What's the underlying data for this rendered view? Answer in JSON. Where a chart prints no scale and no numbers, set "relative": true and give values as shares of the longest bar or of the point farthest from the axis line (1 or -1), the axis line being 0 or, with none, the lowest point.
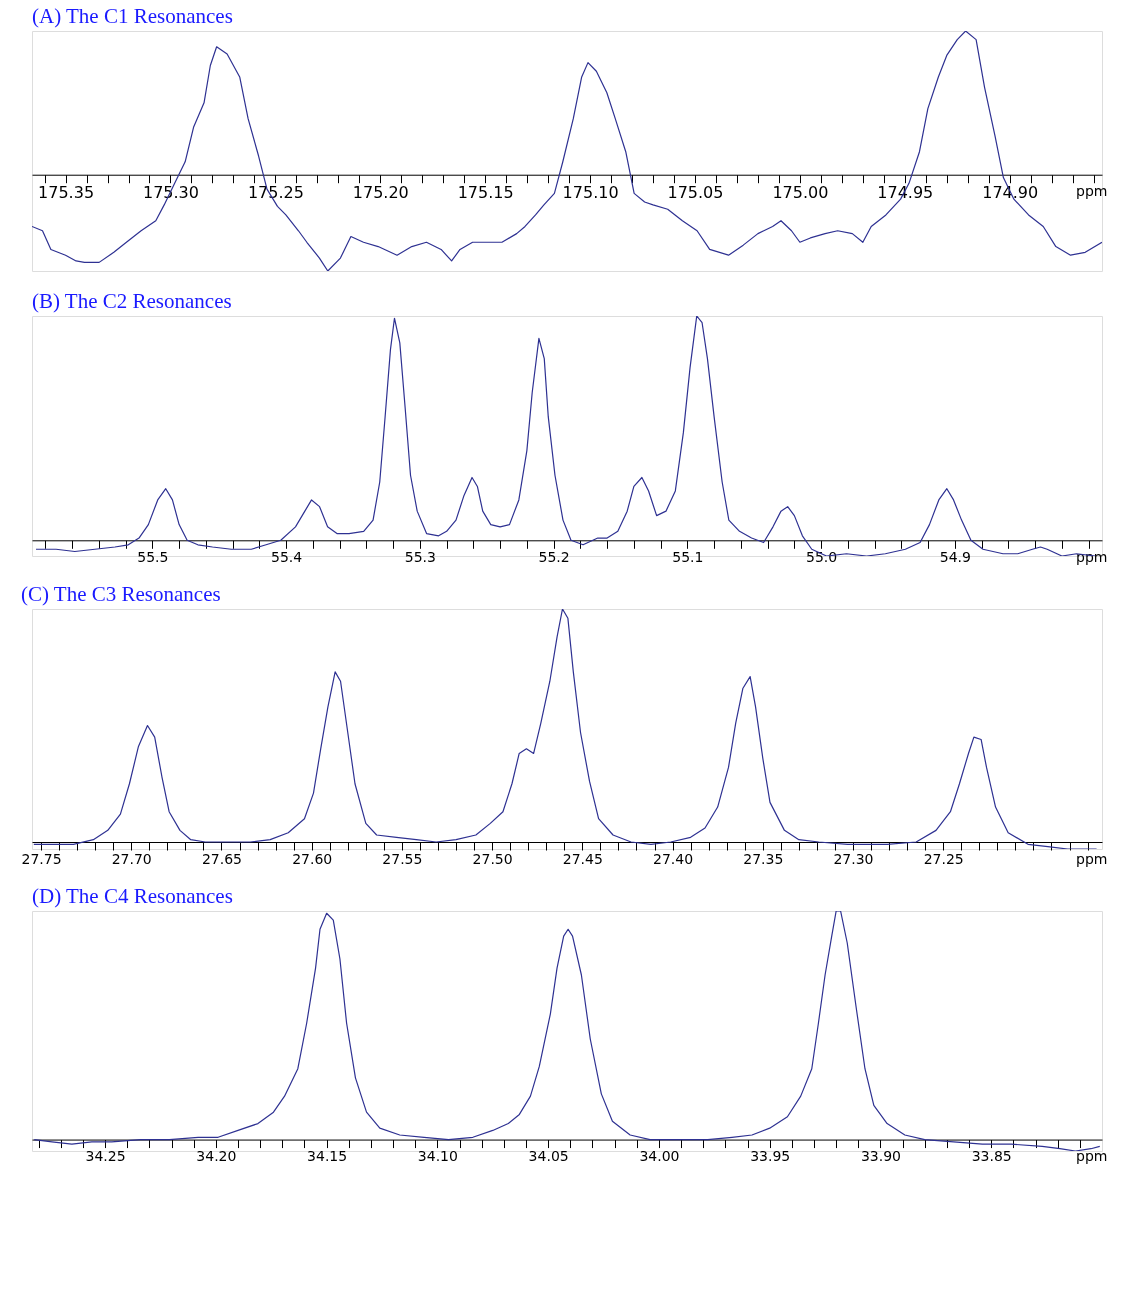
{
  "chart_data": [
    {
      "type": "line",
      "title": "(A) The C1 Resonances",
      "xlabel": "ppm",
      "relative": true,
      "grid": false,
      "xlim": [
        175.366,
        174.856
      ],
      "xticks": [
        {
          "value": 175.36,
          "label": null
        },
        {
          "value": 175.35,
          "label": "175.35"
        },
        {
          "value": 175.34,
          "label": null
        },
        {
          "value": 175.33,
          "label": null
        },
        {
          "value": 175.32,
          "label": null
        },
        {
          "value": 175.31,
          "label": null
        },
        {
          "value": 175.3,
          "label": "175.30"
        },
        {
          "value": 175.29,
          "label": null
        },
        {
          "value": 175.28,
          "label": null
        },
        {
          "value": 175.27,
          "label": null
        },
        {
          "value": 175.26,
          "label": null
        },
        {
          "value": 175.25,
          "label": "175.25"
        },
        {
          "value": 175.24,
          "label": null
        },
        {
          "value": 175.23,
          "label": null
        },
        {
          "value": 175.22,
          "label": null
        },
        {
          "value": 175.21,
          "label": null
        },
        {
          "value": 175.2,
          "label": "175.20"
        },
        {
          "value": 175.19,
          "label": null
        },
        {
          "value": 175.18,
          "label": null
        },
        {
          "value": 175.17,
          "label": null
        },
        {
          "value": 175.16,
          "label": null
        },
        {
          "value": 175.15,
          "label": "175.15"
        },
        {
          "value": 175.14,
          "label": null
        },
        {
          "value": 175.13,
          "label": null
        },
        {
          "value": 175.12,
          "label": null
        },
        {
          "value": 175.11,
          "label": null
        },
        {
          "value": 175.1,
          "label": "175.10"
        },
        {
          "value": 175.09,
          "label": null
        },
        {
          "value": 175.08,
          "label": null
        },
        {
          "value": 175.07,
          "label": null
        },
        {
          "value": 175.06,
          "label": null
        },
        {
          "value": 175.05,
          "label": "175.05"
        },
        {
          "value": 175.04,
          "label": null
        },
        {
          "value": 175.03,
          "label": null
        },
        {
          "value": 175.02,
          "label": null
        },
        {
          "value": 175.01,
          "label": null
        },
        {
          "value": 175.0,
          "label": "175.00"
        },
        {
          "value": 174.99,
          "label": null
        },
        {
          "value": 174.98,
          "label": null
        },
        {
          "value": 174.97,
          "label": null
        },
        {
          "value": 174.96,
          "label": null
        },
        {
          "value": 174.95,
          "label": "174.95"
        },
        {
          "value": 174.94,
          "label": null
        },
        {
          "value": 174.93,
          "label": null
        },
        {
          "value": 174.92,
          "label": null
        },
        {
          "value": 174.91,
          "label": null
        },
        {
          "value": 174.9,
          "label": "174.90"
        },
        {
          "value": 174.89,
          "label": null
        },
        {
          "value": 174.88,
          "label": null
        },
        {
          "value": 174.87,
          "label": null
        },
        {
          "value": 174.86,
          "label": null
        }
      ],
      "series": [
        {
          "color": "#2e3192",
          "line_style": "solid",
          "x": [
            175.366,
            175.361,
            175.357,
            175.35,
            175.345,
            175.341,
            175.334,
            175.327,
            175.321,
            175.314,
            175.307,
            175.303,
            175.298,
            175.293,
            175.289,
            175.284,
            175.281,
            175.278,
            175.273,
            175.267,
            175.263,
            175.258,
            175.254,
            175.249,
            175.245,
            175.239,
            175.235,
            175.229,
            175.225,
            175.219,
            175.214,
            175.208,
            175.201,
            175.192,
            175.185,
            175.178,
            175.171,
            175.166,
            175.162,
            175.156,
            175.149,
            175.142,
            175.135,
            175.131,
            175.126,
            175.122,
            175.117,
            175.113,
            175.108,
            175.104,
            175.101,
            175.097,
            175.092,
            175.088,
            175.083,
            175.079,
            175.074,
            175.07,
            175.063,
            175.056,
            175.049,
            175.043,
            175.034,
            175.027,
            175.02,
            175.013,
            175.009,
            175.004,
            175.0,
            174.995,
            174.988,
            174.982,
            174.975,
            174.97,
            174.966,
            174.959,
            174.952,
            174.948,
            174.943,
            174.939,
            174.934,
            174.93,
            174.925,
            174.921,
            174.916,
            174.912,
            174.907,
            174.903,
            174.898,
            174.891,
            174.884,
            174.878,
            174.871,
            174.864,
            174.856
          ],
          "values": [
            -0.36,
            -0.39,
            -0.52,
            -0.56,
            -0.6,
            -0.61,
            -0.61,
            -0.54,
            -0.47,
            -0.39,
            -0.32,
            -0.21,
            -0.06,
            0.09,
            0.33,
            0.5,
            0.76,
            0.89,
            0.84,
            0.68,
            0.39,
            0.13,
            -0.1,
            -0.22,
            -0.28,
            -0.39,
            -0.47,
            -0.58,
            -0.67,
            -0.58,
            -0.43,
            -0.47,
            -0.5,
            -0.56,
            -0.5,
            -0.47,
            -0.52,
            -0.6,
            -0.52,
            -0.47,
            -0.47,
            -0.47,
            -0.41,
            -0.36,
            -0.28,
            -0.21,
            -0.13,
            0.09,
            0.39,
            0.68,
            0.78,
            0.72,
            0.57,
            0.39,
            0.16,
            -0.13,
            -0.19,
            -0.21,
            -0.24,
            -0.32,
            -0.39,
            -0.52,
            -0.56,
            -0.49,
            -0.41,
            -0.36,
            -0.32,
            -0.39,
            -0.47,
            -0.44,
            -0.41,
            -0.39,
            -0.41,
            -0.47,
            -0.36,
            -0.28,
            -0.17,
            -0.06,
            0.16,
            0.46,
            0.68,
            0.83,
            0.94,
            1,
            0.94,
            0.61,
            0.27,
            -0.02,
            -0.17,
            -0.28,
            -0.36,
            -0.5,
            -0.56,
            -0.54,
            -0.47
          ]
        }
      ]
    },
    {
      "type": "line",
      "title": "(B) The C2 Resonances",
      "xlabel": "ppm",
      "relative": true,
      "grid": false,
      "xlim": [
        55.59,
        54.79
      ],
      "xticks": [
        {
          "value": 55.58,
          "label": null
        },
        {
          "value": 55.56,
          "label": null
        },
        {
          "value": 55.54,
          "label": null
        },
        {
          "value": 55.52,
          "label": null
        },
        {
          "value": 55.5,
          "label": "55.5"
        },
        {
          "value": 55.48,
          "label": null
        },
        {
          "value": 55.46,
          "label": null
        },
        {
          "value": 55.44,
          "label": null
        },
        {
          "value": 55.42,
          "label": null
        },
        {
          "value": 55.4,
          "label": "55.4"
        },
        {
          "value": 55.38,
          "label": null
        },
        {
          "value": 55.36,
          "label": null
        },
        {
          "value": 55.34,
          "label": null
        },
        {
          "value": 55.32,
          "label": null
        },
        {
          "value": 55.3,
          "label": "55.3"
        },
        {
          "value": 55.28,
          "label": null
        },
        {
          "value": 55.26,
          "label": null
        },
        {
          "value": 55.24,
          "label": null
        },
        {
          "value": 55.22,
          "label": null
        },
        {
          "value": 55.2,
          "label": "55.2"
        },
        {
          "value": 55.18,
          "label": null
        },
        {
          "value": 55.16,
          "label": null
        },
        {
          "value": 55.14,
          "label": null
        },
        {
          "value": 55.12,
          "label": null
        },
        {
          "value": 55.1,
          "label": "55.1"
        },
        {
          "value": 55.08,
          "label": null
        },
        {
          "value": 55.06,
          "label": null
        },
        {
          "value": 55.04,
          "label": null
        },
        {
          "value": 55.02,
          "label": null
        },
        {
          "value": 55.0,
          "label": "55.0"
        },
        {
          "value": 54.98,
          "label": null
        },
        {
          "value": 54.96,
          "label": null
        },
        {
          "value": 54.94,
          "label": null
        },
        {
          "value": 54.92,
          "label": null
        },
        {
          "value": 54.9,
          "label": "54.9"
        },
        {
          "value": 54.88,
          "label": null
        },
        {
          "value": 54.86,
          "label": null
        },
        {
          "value": 54.84,
          "label": null
        },
        {
          "value": 54.82,
          "label": null
        },
        {
          "value": 54.8,
          "label": null
        }
      ],
      "series": [
        {
          "color": "#2e3192",
          "line_style": "solid",
          "x": [
            55.587,
            55.572,
            55.558,
            55.543,
            55.528,
            55.518,
            55.51,
            55.503,
            55.496,
            55.49,
            55.485,
            55.48,
            55.474,
            55.466,
            55.455,
            55.441,
            55.426,
            55.415,
            55.404,
            55.393,
            55.386,
            55.381,
            55.375,
            55.369,
            55.362,
            55.353,
            55.342,
            55.335,
            55.33,
            55.326,
            55.322,
            55.319,
            55.315,
            55.311,
            55.307,
            55.302,
            55.295,
            55.286,
            55.28,
            55.273,
            55.267,
            55.261,
            55.257,
            55.253,
            55.247,
            55.24,
            55.233,
            55.226,
            55.22,
            55.216,
            55.211,
            55.207,
            55.204,
            55.199,
            55.193,
            55.187,
            55.178,
            55.167,
            55.16,
            55.152,
            55.145,
            55.14,
            55.134,
            55.129,
            55.123,
            55.116,
            55.109,
            55.103,
            55.098,
            55.093,
            55.089,
            55.085,
            55.08,
            55.074,
            55.069,
            55.061,
            55.052,
            55.043,
            55.036,
            55.03,
            55.025,
            55.02,
            55.014,
            55.007,
            54.996,
            54.981,
            54.966,
            54.952,
            54.937,
            54.926,
            54.919,
            54.912,
            54.906,
            54.901,
            54.895,
            54.888,
            54.879,
            54.864,
            54.853,
            54.842,
            54.836,
            54.831,
            54.82,
            54.809,
            54.795
          ],
          "values": [
            -0.04,
            -0.04,
            -0.05,
            -0.04,
            -0.03,
            -0.02,
            0.01,
            0.07,
            0.18,
            0.23,
            0.18,
            0.07,
            0,
            -0.02,
            -0.03,
            -0.04,
            -0.04,
            -0.02,
            0,
            0.06,
            0.13,
            0.18,
            0.15,
            0.06,
            0.03,
            0.03,
            0.04,
            0.09,
            0.26,
            0.55,
            0.85,
            0.99,
            0.88,
            0.59,
            0.29,
            0.13,
            0.03,
            0.02,
            0.04,
            0.09,
            0.2,
            0.28,
            0.24,
            0.13,
            0.07,
            0.06,
            0.07,
            0.18,
            0.4,
            0.66,
            0.9,
            0.81,
            0.55,
            0.29,
            0.09,
            0,
            -0.02,
            0.01,
            0.01,
            0.04,
            0.13,
            0.24,
            0.28,
            0.22,
            0.11,
            0.13,
            0.22,
            0.48,
            0.77,
            1,
            0.97,
            0.81,
            0.55,
            0.26,
            0.09,
            0.04,
            0.01,
            -0.01,
            0.06,
            0.13,
            0.15,
            0.11,
            0.02,
            -0.04,
            -0.07,
            -0.06,
            -0.07,
            -0.06,
            -0.04,
            -0.01,
            0.07,
            0.18,
            0.23,
            0.18,
            0.09,
            0,
            -0.04,
            -0.06,
            -0.06,
            -0.04,
            -0.03,
            -0.04,
            -0.07,
            -0.06,
            -0.07
          ]
        }
      ]
    },
    {
      "type": "line",
      "title": "(C) The C3 Resonances",
      "xlabel": "ppm",
      "relative": true,
      "grid": false,
      "xlim": [
        27.755,
        27.162
      ],
      "xticks": [
        {
          "value": 27.75,
          "label": "27.75"
        },
        {
          "value": 27.74,
          "label": null
        },
        {
          "value": 27.73,
          "label": null
        },
        {
          "value": 27.72,
          "label": null
        },
        {
          "value": 27.71,
          "label": null
        },
        {
          "value": 27.7,
          "label": "27.70"
        },
        {
          "value": 27.69,
          "label": null
        },
        {
          "value": 27.68,
          "label": null
        },
        {
          "value": 27.67,
          "label": null
        },
        {
          "value": 27.66,
          "label": null
        },
        {
          "value": 27.65,
          "label": "27.65"
        },
        {
          "value": 27.64,
          "label": null
        },
        {
          "value": 27.63,
          "label": null
        },
        {
          "value": 27.62,
          "label": null
        },
        {
          "value": 27.61,
          "label": null
        },
        {
          "value": 27.6,
          "label": "27.60"
        },
        {
          "value": 27.59,
          "label": null
        },
        {
          "value": 27.58,
          "label": null
        },
        {
          "value": 27.57,
          "label": null
        },
        {
          "value": 27.56,
          "label": null
        },
        {
          "value": 27.55,
          "label": "27.55"
        },
        {
          "value": 27.54,
          "label": null
        },
        {
          "value": 27.53,
          "label": null
        },
        {
          "value": 27.52,
          "label": null
        },
        {
          "value": 27.51,
          "label": null
        },
        {
          "value": 27.5,
          "label": "27.50"
        },
        {
          "value": 27.49,
          "label": null
        },
        {
          "value": 27.48,
          "label": null
        },
        {
          "value": 27.47,
          "label": null
        },
        {
          "value": 27.46,
          "label": null
        },
        {
          "value": 27.45,
          "label": "27.45"
        },
        {
          "value": 27.44,
          "label": null
        },
        {
          "value": 27.43,
          "label": null
        },
        {
          "value": 27.42,
          "label": null
        },
        {
          "value": 27.41,
          "label": null
        },
        {
          "value": 27.4,
          "label": "27.40"
        },
        {
          "value": 27.39,
          "label": null
        },
        {
          "value": 27.38,
          "label": null
        },
        {
          "value": 27.37,
          "label": null
        },
        {
          "value": 27.36,
          "label": null
        },
        {
          "value": 27.35,
          "label": "27.35"
        },
        {
          "value": 27.34,
          "label": null
        },
        {
          "value": 27.33,
          "label": null
        },
        {
          "value": 27.32,
          "label": null
        },
        {
          "value": 27.31,
          "label": null
        },
        {
          "value": 27.3,
          "label": "27.30"
        },
        {
          "value": 27.29,
          "label": null
        },
        {
          "value": 27.28,
          "label": null
        },
        {
          "value": 27.27,
          "label": null
        },
        {
          "value": 27.26,
          "label": null
        },
        {
          "value": 27.25,
          "label": "27.25"
        },
        {
          "value": 27.24,
          "label": null
        },
        {
          "value": 27.23,
          "label": null
        },
        {
          "value": 27.22,
          "label": null
        },
        {
          "value": 27.21,
          "label": null
        },
        {
          "value": 27.2,
          "label": null
        },
        {
          "value": 27.19,
          "label": null
        },
        {
          "value": 27.18,
          "label": null
        },
        {
          "value": 27.17,
          "label": null
        }
      ],
      "series": [
        {
          "color": "#2e3192",
          "line_style": "solid",
          "x": [
            27.754,
            27.743,
            27.732,
            27.721,
            27.713,
            27.706,
            27.701,
            27.696,
            27.691,
            27.687,
            27.683,
            27.679,
            27.673,
            27.667,
            27.659,
            27.648,
            27.634,
            27.623,
            27.613,
            27.604,
            27.599,
            27.595,
            27.591,
            27.587,
            27.584,
            27.58,
            27.576,
            27.57,
            27.564,
            27.553,
            27.542,
            27.531,
            27.52,
            27.509,
            27.501,
            27.494,
            27.489,
            27.485,
            27.481,
            27.477,
            27.473,
            27.468,
            27.464,
            27.461,
            27.458,
            27.455,
            27.451,
            27.446,
            27.441,
            27.433,
            27.423,
            27.412,
            27.401,
            27.39,
            27.382,
            27.375,
            27.369,
            27.365,
            27.361,
            27.357,
            27.354,
            27.35,
            27.346,
            27.338,
            27.33,
            27.319,
            27.303,
            27.281,
            27.265,
            27.254,
            27.246,
            27.241,
            27.236,
            27.233,
            27.229,
            27.226,
            27.221,
            27.214,
            27.203,
            27.192,
            27.181,
            27.173,
            27.165
          ],
          "values": [
            -0.01,
            -0.01,
            -0.01,
            0.01,
            0.05,
            0.12,
            0.25,
            0.41,
            0.5,
            0.45,
            0.28,
            0.13,
            0.05,
            0.01,
            0,
            0,
            0,
            0.01,
            0.04,
            0.1,
            0.21,
            0.4,
            0.58,
            0.73,
            0.69,
            0.47,
            0.25,
            0.08,
            0.03,
            0.02,
            0.01,
            0,
            0.01,
            0.03,
            0.08,
            0.13,
            0.25,
            0.38,
            0.4,
            0.38,
            0.51,
            0.69,
            0.88,
            1,
            0.96,
            0.73,
            0.47,
            0.26,
            0.1,
            0.03,
            0,
            -0.01,
            0,
            0.02,
            0.06,
            0.15,
            0.32,
            0.51,
            0.66,
            0.71,
            0.58,
            0.36,
            0.17,
            0.05,
            0.01,
            0,
            -0.01,
            -0.01,
            0,
            0.05,
            0.13,
            0.25,
            0.38,
            0.45,
            0.44,
            0.32,
            0.15,
            0.04,
            -0.01,
            -0.02,
            -0.03,
            -0.03,
            -0.03
          ]
        }
      ]
    },
    {
      "type": "line",
      "title": "(D) The C4 Resonances",
      "xlabel": "ppm",
      "relative": true,
      "grid": false,
      "xlim": [
        34.283,
        33.8
      ],
      "xticks": [
        {
          "value": 34.28,
          "label": null
        },
        {
          "value": 34.27,
          "label": null
        },
        {
          "value": 34.26,
          "label": null
        },
        {
          "value": 34.25,
          "label": "34.25"
        },
        {
          "value": 34.24,
          "label": null
        },
        {
          "value": 34.23,
          "label": null
        },
        {
          "value": 34.22,
          "label": null
        },
        {
          "value": 34.21,
          "label": null
        },
        {
          "value": 34.2,
          "label": "34.20"
        },
        {
          "value": 34.19,
          "label": null
        },
        {
          "value": 34.18,
          "label": null
        },
        {
          "value": 34.17,
          "label": null
        },
        {
          "value": 34.16,
          "label": null
        },
        {
          "value": 34.15,
          "label": "34.15"
        },
        {
          "value": 34.14,
          "label": null
        },
        {
          "value": 34.13,
          "label": null
        },
        {
          "value": 34.12,
          "label": null
        },
        {
          "value": 34.11,
          "label": null
        },
        {
          "value": 34.1,
          "label": "34.10"
        },
        {
          "value": 34.09,
          "label": null
        },
        {
          "value": 34.08,
          "label": null
        },
        {
          "value": 34.07,
          "label": null
        },
        {
          "value": 34.06,
          "label": null
        },
        {
          "value": 34.05,
          "label": "34.05"
        },
        {
          "value": 34.04,
          "label": null
        },
        {
          "value": 34.03,
          "label": null
        },
        {
          "value": 34.02,
          "label": null
        },
        {
          "value": 34.01,
          "label": null
        },
        {
          "value": 34.0,
          "label": "34.00"
        },
        {
          "value": 33.99,
          "label": null
        },
        {
          "value": 33.98,
          "label": null
        },
        {
          "value": 33.97,
          "label": null
        },
        {
          "value": 33.96,
          "label": null
        },
        {
          "value": 33.95,
          "label": "33.95"
        },
        {
          "value": 33.94,
          "label": null
        },
        {
          "value": 33.93,
          "label": null
        },
        {
          "value": 33.92,
          "label": null
        },
        {
          "value": 33.91,
          "label": null
        },
        {
          "value": 33.9,
          "label": "33.90"
        },
        {
          "value": 33.89,
          "label": null
        },
        {
          "value": 33.88,
          "label": null
        },
        {
          "value": 33.87,
          "label": null
        },
        {
          "value": 33.86,
          "label": null
        },
        {
          "value": 33.85,
          "label": "33.85"
        },
        {
          "value": 33.84,
          "label": null
        },
        {
          "value": 33.83,
          "label": null
        },
        {
          "value": 33.82,
          "label": null
        },
        {
          "value": 33.81,
          "label": null
        }
      ],
      "series": [
        {
          "color": "#2e3192",
          "line_style": "solid",
          "x": [
            34.282,
            34.274,
            34.265,
            34.256,
            34.247,
            34.234,
            34.221,
            34.208,
            34.199,
            34.19,
            34.181,
            34.174,
            34.169,
            34.163,
            34.159,
            34.155,
            34.153,
            34.15,
            34.147,
            34.144,
            34.141,
            34.137,
            34.132,
            34.126,
            34.117,
            34.106,
            34.095,
            34.084,
            34.075,
            34.068,
            34.063,
            34.058,
            34.054,
            34.049,
            34.046,
            34.043,
            34.041,
            34.039,
            34.035,
            34.031,
            34.026,
            34.021,
            34.013,
            34.004,
            33.991,
            33.978,
            33.967,
            33.958,
            33.95,
            33.942,
            33.936,
            33.931,
            33.928,
            33.925,
            33.922,
            33.92,
            33.918,
            33.915,
            33.911,
            33.907,
            33.903,
            33.897,
            33.889,
            33.88,
            33.867,
            33.854,
            33.841,
            33.827,
            33.819,
            33.812,
            33.805,
            33.801
          ],
          "values": [
            0,
            -0.01,
            -0.02,
            -0.01,
            -0.01,
            0,
            0,
            0.01,
            0.01,
            0.04,
            0.07,
            0.12,
            0.19,
            0.31,
            0.51,
            0.75,
            0.92,
            0.99,
            0.96,
            0.79,
            0.51,
            0.27,
            0.12,
            0.05,
            0.02,
            0.01,
            0,
            0.01,
            0.04,
            0.07,
            0.11,
            0.19,
            0.32,
            0.55,
            0.75,
            0.89,
            0.92,
            0.89,
            0.72,
            0.44,
            0.2,
            0.08,
            0.02,
            0,
            0,
            0,
            0.01,
            0.02,
            0.05,
            0.1,
            0.19,
            0.31,
            0.51,
            0.72,
            0.89,
            1,
            1,
            0.86,
            0.58,
            0.31,
            0.15,
            0.07,
            0.02,
            0,
            -0.01,
            -0.02,
            -0.02,
            -0.03,
            -0.04,
            -0.05,
            -0.04,
            -0.03
          ]
        }
      ]
    }
  ]
}
